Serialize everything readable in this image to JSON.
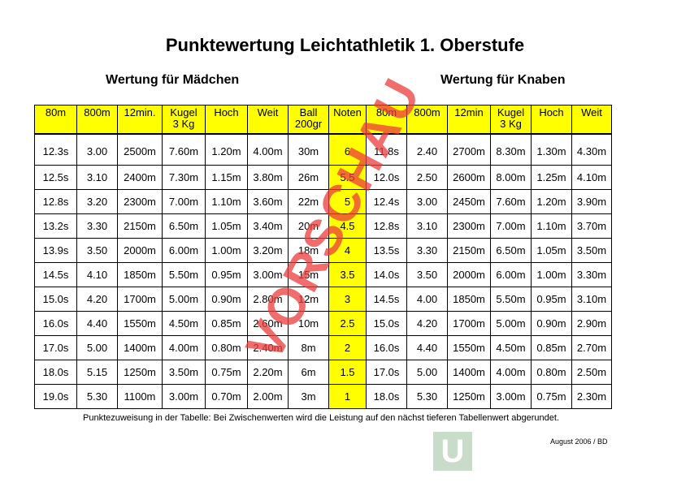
{
  "title": "Punktewertung Leichtathletik 1. Oberstufe",
  "girls_heading": "Wertung für Mädchen",
  "boys_heading": "Wertung für Knaben",
  "headers": [
    "80m",
    "800m",
    "12min.",
    "Kugel\n3 Kg",
    "Hoch",
    "Weit",
    "Ball\n200gr",
    "Noten",
    "80m",
    "800m",
    "12min",
    "Kugel\n3 Kg",
    "Hoch",
    "Weit"
  ],
  "rows": [
    [
      "12.3s",
      "3.00",
      "2500m",
      "7.60m",
      "1.20m",
      "4.00m",
      "30m",
      "6",
      "11.8s",
      "2.40",
      "2700m",
      "8.30m",
      "1.30m",
      "4.30m"
    ],
    [
      "12.5s",
      "3.10",
      "2400m",
      "7.30m",
      "1.15m",
      "3.80m",
      "26m",
      "5.5",
      "12.0s",
      "2.50",
      "2600m",
      "8.00m",
      "1.25m",
      "4.10m"
    ],
    [
      "12.8s",
      "3.20",
      "2300m",
      "7.00m",
      "1.10m",
      "3.60m",
      "22m",
      "5",
      "12.4s",
      "3.00",
      "2450m",
      "7.60m",
      "1.20m",
      "3.90m"
    ],
    [
      "13.2s",
      "3.30",
      "2150m",
      "6.50m",
      "1.05m",
      "3.40m",
      "20m",
      "4.5",
      "12.8s",
      "3.10",
      "2300m",
      "7.00m",
      "1.10m",
      "3.70m"
    ],
    [
      "13.9s",
      "3.50",
      "2000m",
      "6.00m",
      "1.00m",
      "3.20m",
      "18m",
      "4",
      "13.5s",
      "3.30",
      "2150m",
      "6.50m",
      "1.05m",
      "3.50m"
    ],
    [
      "14.5s",
      "4.10",
      "1850m",
      "5.50m",
      "0.95m",
      "3.00m",
      "15m",
      "3.5",
      "14.0s",
      "3.50",
      "2000m",
      "6.00m",
      "1.00m",
      "3.30m"
    ],
    [
      "15.0s",
      "4.20",
      "1700m",
      "5.00m",
      "0.90m",
      "2.80m",
      "12m",
      "3",
      "14.5s",
      "4.00",
      "1850m",
      "5.50m",
      "0.95m",
      "3.10m"
    ],
    [
      "16.0s",
      "4.40",
      "1550m",
      "4.50m",
      "0.85m",
      "2.60m",
      "10m",
      "2.5",
      "15.0s",
      "4.20",
      "1700m",
      "5.00m",
      "0.90m",
      "2.90m"
    ],
    [
      "17.0s",
      "5.00",
      "1400m",
      "4.00m",
      "0.80m",
      "2.40m",
      "8m",
      "2",
      "16.0s",
      "4.40",
      "1550m",
      "4.50m",
      "0.85m",
      "2.70m"
    ],
    [
      "18.0s",
      "5.15",
      "1250m",
      "3.50m",
      "0.75m",
      "2.20m",
      "6m",
      "1.5",
      "17.0s",
      "5.00",
      "1400m",
      "4.00m",
      "0.80m",
      "2.50m"
    ],
    [
      "19.0s",
      "5.30",
      "1100m",
      "3.00m",
      "0.70m",
      "2.00m",
      "3m",
      "1",
      "18.0s",
      "5.30",
      "1250m",
      "3.00m",
      "0.75m",
      "2.30m"
    ]
  ],
  "footnote": "Punktezuweisung in der Tabelle: Bei Zwischenwerten wird die Leistung auf den nächst tieferen Tabellenwert abgerundet.",
  "date": "August 2006 / BD",
  "logo_letter": "U",
  "watermark": "VORSCHAU",
  "colors": {
    "header_bg": "#ffff00",
    "watermark": "#eb3c3c",
    "logo_bg": "#c9dcc9"
  }
}
